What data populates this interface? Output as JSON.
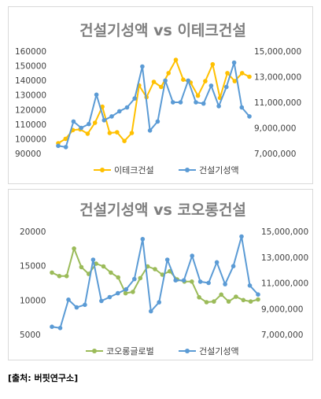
{
  "source_note": "[출처: 버핏연구소]",
  "chart_data": [
    {
      "type": "line",
      "title": "건설기성액 vs 이테크건설",
      "left_axis": {
        "ylim": [
          90000,
          160000
        ],
        "ticks": [
          "160000",
          "150000",
          "140000",
          "130000",
          "120000",
          "110000",
          "100000",
          "90000"
        ]
      },
      "right_axis": {
        "ylim": [
          7000000,
          15000000
        ],
        "ticks": [
          "15,000,000",
          "13,000,000",
          "11,000,000",
          "9,000,000",
          "7,000,000"
        ]
      },
      "grid": false,
      "legend_position": "bottom",
      "series": [
        {
          "name": "이테크건설",
          "axis": "left",
          "color": "#ffc000",
          "values": [
            97000,
            100000,
            106000,
            106500,
            103500,
            111000,
            122000,
            104000,
            104500,
            98500,
            104000,
            136500,
            128500,
            139000,
            135500,
            145000,
            154000,
            140500,
            138500,
            129500,
            139500,
            151000,
            128000,
            145000,
            139500,
            145000,
            142500
          ]
        },
        {
          "name": "건설기성액",
          "axis": "right",
          "color": "#5b9bd5",
          "values": [
            7600000,
            7500000,
            9500000,
            9000000,
            9300000,
            11600000,
            9600000,
            9900000,
            10300000,
            10600000,
            11300000,
            13800000,
            8800000,
            9500000,
            12700000,
            11000000,
            11000000,
            12700000,
            11000000,
            10900000,
            12300000,
            10700000,
            12200000,
            14100000,
            10600000,
            9900000
          ]
        }
      ]
    },
    {
      "type": "line",
      "title": "건설기성액 vs 코오롱건설",
      "left_axis": {
        "ylim": [
          5000,
          20000
        ],
        "ticks": [
          "20000",
          "15000",
          "10000",
          "5000"
        ]
      },
      "right_axis": {
        "ylim": [
          7000000,
          15000000
        ],
        "ticks": [
          "15,000,000",
          "13,000,000",
          "11,000,000",
          "9,000,000",
          "7,000,000"
        ]
      },
      "grid": false,
      "legend_position": "bottom",
      "series": [
        {
          "name": "코오롱글로벌",
          "axis": "left",
          "color": "#9bbb59",
          "values": [
            14000,
            13500,
            13500,
            17500,
            14800,
            13800,
            15300,
            14900,
            14000,
            13300,
            11000,
            11200,
            13200,
            14900,
            14500,
            13700,
            14200,
            13000,
            12700,
            12700,
            10400,
            9700,
            9800,
            10800,
            9800,
            10500,
            10000,
            9800,
            10100
          ]
        },
        {
          "name": "건설기성액",
          "axis": "right",
          "color": "#5b9bd5",
          "values": [
            7600000,
            7500000,
            9700000,
            9100000,
            9300000,
            12800000,
            9600000,
            9900000,
            10200000,
            10500000,
            11300000,
            14400000,
            8800000,
            9500000,
            12800000,
            11200000,
            11200000,
            13100000,
            11100000,
            11000000,
            12600000,
            10900000,
            12300000,
            14600000,
            10800000,
            10100000
          ]
        }
      ]
    }
  ]
}
